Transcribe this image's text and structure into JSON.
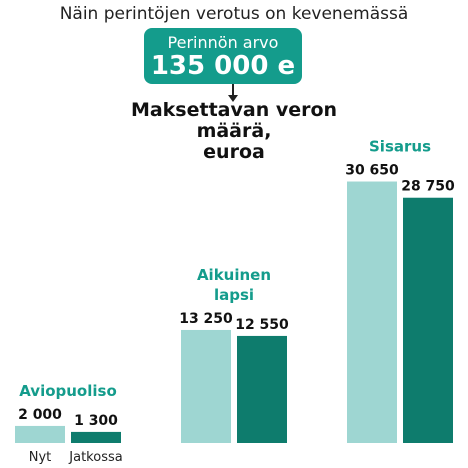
{
  "title": "Näin perintöjen verotus on kevenemässä",
  "highlight": {
    "label": "Perinnön arvo",
    "value": "135 000 e"
  },
  "subtitle_lines": [
    "Maksettavan veron määrä,",
    "euroa"
  ],
  "colors": {
    "accent": "#149c8c",
    "nyt": "#9ed6d2",
    "jatkossa": "#0e7c6d",
    "text": "#111111"
  },
  "chart_data": {
    "type": "bar",
    "categories": [
      "Aviopuoliso",
      "Aikuinen lapsi",
      "Sisarus"
    ],
    "category_label_lines": [
      [
        "Aviopuoliso"
      ],
      [
        "Aikuinen",
        "lapsi"
      ],
      [
        "Sisarus"
      ]
    ],
    "series": [
      {
        "name": "Nyt",
        "values": [
          2000,
          13250,
          30650
        ],
        "labels": [
          "2 000",
          "13 250",
          "30 650"
        ]
      },
      {
        "name": "Jatkossa",
        "values": [
          1300,
          12550,
          28750
        ],
        "labels": [
          "1 300",
          "12 550",
          "28 750"
        ]
      }
    ],
    "title": "Maksettavan veron määrä, euroa",
    "xlabel": "",
    "ylabel": "",
    "ylim": [
      0,
      32000
    ],
    "grid": false,
    "legend": "bottom-left"
  }
}
